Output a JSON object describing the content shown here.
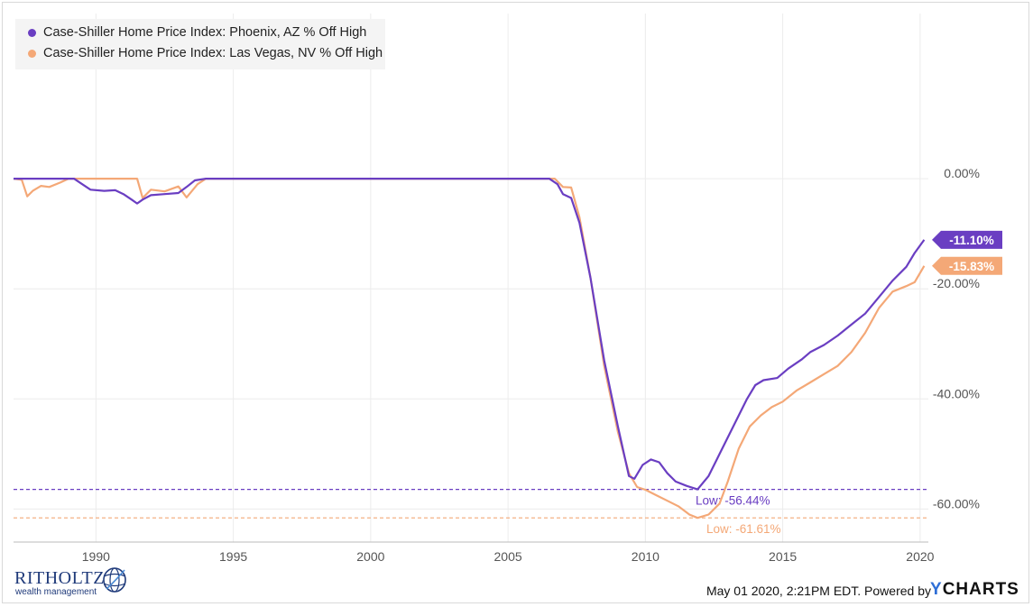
{
  "chart_data": {
    "type": "line",
    "title": "",
    "xlabel": "",
    "ylabel": "",
    "xlim": [
      1987.0,
      2020.3
    ],
    "ylim": [
      -66,
      30
    ],
    "x_ticks": [
      "1990",
      "1995",
      "2000",
      "2005",
      "2010",
      "2015",
      "2020"
    ],
    "y_ticks": [
      "0.00%",
      "-20.00%",
      "-40.00%",
      "-60.00%"
    ],
    "grid": "on",
    "legend_position": "top-left",
    "series": [
      {
        "name": "Case-Shiller Home Price Index: Phoenix, AZ % Off High",
        "color": "#6a3ec2",
        "last_value_label": "-11.10%",
        "low_label": "Low: -56.44%",
        "low_value": -56.44,
        "points": [
          [
            1987.0,
            0
          ],
          [
            1989.2,
            0
          ],
          [
            1989.5,
            -1.0
          ],
          [
            1989.8,
            -2.0
          ],
          [
            1990.3,
            -2.2
          ],
          [
            1990.7,
            -2.1
          ],
          [
            1991.0,
            -2.8
          ],
          [
            1991.3,
            -3.8
          ],
          [
            1991.5,
            -4.5
          ],
          [
            1991.7,
            -3.8
          ],
          [
            1992.0,
            -3.0
          ],
          [
            1992.5,
            -2.8
          ],
          [
            1993.0,
            -2.6
          ],
          [
            1993.3,
            -1.5
          ],
          [
            1993.6,
            -0.3
          ],
          [
            1994.0,
            0
          ],
          [
            2006.5,
            0
          ],
          [
            2006.8,
            -1.0
          ],
          [
            2007.0,
            -2.8
          ],
          [
            2007.3,
            -3.5
          ],
          [
            2007.6,
            -8.0
          ],
          [
            2008.0,
            -18.0
          ],
          [
            2008.5,
            -33.0
          ],
          [
            2009.0,
            -45.0
          ],
          [
            2009.4,
            -54.0
          ],
          [
            2009.6,
            -54.5
          ],
          [
            2009.9,
            -52.0
          ],
          [
            2010.2,
            -51.0
          ],
          [
            2010.5,
            -51.5
          ],
          [
            2010.8,
            -53.5
          ],
          [
            2011.1,
            -55.0
          ],
          [
            2011.5,
            -55.8
          ],
          [
            2011.9,
            -56.44
          ],
          [
            2012.3,
            -54.0
          ],
          [
            2012.7,
            -50.0
          ],
          [
            2013.2,
            -45.0
          ],
          [
            2013.7,
            -40.0
          ],
          [
            2014.0,
            -37.5
          ],
          [
            2014.3,
            -36.6
          ],
          [
            2014.8,
            -36.2
          ],
          [
            2015.2,
            -34.5
          ],
          [
            2015.7,
            -32.8
          ],
          [
            2016.0,
            -31.5
          ],
          [
            2016.5,
            -30.2
          ],
          [
            2017.0,
            -28.5
          ],
          [
            2017.5,
            -26.5
          ],
          [
            2018.0,
            -24.5
          ],
          [
            2018.5,
            -21.5
          ],
          [
            2019.0,
            -18.5
          ],
          [
            2019.5,
            -16.0
          ],
          [
            2019.8,
            -13.5
          ],
          [
            2020.15,
            -11.1
          ]
        ]
      },
      {
        "name": "Case-Shiller Home Price Index: Las Vegas, NV % Off High",
        "color": "#f4a877",
        "last_value_label": "-15.83%",
        "low_label": "Low: -61.61%",
        "low_value": -61.61,
        "points": [
          [
            1987.0,
            0
          ],
          [
            1987.3,
            -0.2
          ],
          [
            1987.5,
            -3.2
          ],
          [
            1987.7,
            -2.2
          ],
          [
            1988.0,
            -1.3
          ],
          [
            1988.3,
            -1.5
          ],
          [
            1988.7,
            -0.7
          ],
          [
            1989.0,
            0
          ],
          [
            1991.5,
            0
          ],
          [
            1991.7,
            -3.5
          ],
          [
            1992.0,
            -2.0
          ],
          [
            1992.5,
            -2.3
          ],
          [
            1993.0,
            -1.4
          ],
          [
            1993.3,
            -3.4
          ],
          [
            1993.7,
            -1.0
          ],
          [
            1994.0,
            0
          ],
          [
            2006.7,
            0
          ],
          [
            2007.0,
            -1.5
          ],
          [
            2007.3,
            -1.6
          ],
          [
            2007.6,
            -7.0
          ],
          [
            2008.0,
            -18.0
          ],
          [
            2008.5,
            -34.0
          ],
          [
            2009.0,
            -46.0
          ],
          [
            2009.4,
            -53.5
          ],
          [
            2009.7,
            -56.0
          ],
          [
            2010.0,
            -56.5
          ],
          [
            2010.4,
            -57.5
          ],
          [
            2010.8,
            -58.5
          ],
          [
            2011.2,
            -59.5
          ],
          [
            2011.6,
            -61.0
          ],
          [
            2011.9,
            -61.61
          ],
          [
            2012.3,
            -61.0
          ],
          [
            2012.7,
            -59.0
          ],
          [
            2013.0,
            -55.0
          ],
          [
            2013.4,
            -49.0
          ],
          [
            2013.8,
            -45.0
          ],
          [
            2014.2,
            -43.0
          ],
          [
            2014.6,
            -41.5
          ],
          [
            2015.0,
            -40.5
          ],
          [
            2015.5,
            -38.5
          ],
          [
            2016.0,
            -37.0
          ],
          [
            2016.5,
            -35.5
          ],
          [
            2017.0,
            -34.0
          ],
          [
            2017.5,
            -31.5
          ],
          [
            2018.0,
            -28.0
          ],
          [
            2018.5,
            -23.5
          ],
          [
            2019.0,
            -20.5
          ],
          [
            2019.5,
            -19.5
          ],
          [
            2019.8,
            -18.8
          ],
          [
            2020.15,
            -15.83
          ]
        ]
      }
    ]
  },
  "footer": {
    "timestamp": "May 01 2020, 2:21PM EDT. Powered by",
    "brand_y": "Y",
    "brand_rest": "CHARTS"
  },
  "logo": {
    "main": "RITHOLTZ",
    "sub": "wealth management"
  }
}
